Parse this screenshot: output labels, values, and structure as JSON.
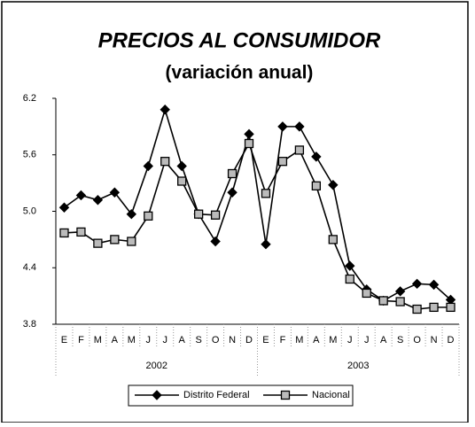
{
  "chart_data": {
    "type": "line",
    "title": "PRECIOS AL CONSUMIDOR",
    "subtitle": "(variación anual)",
    "categories": [
      "E",
      "F",
      "M",
      "A",
      "M",
      "J",
      "J",
      "A",
      "S",
      "O",
      "N",
      "D",
      "E",
      "F",
      "M",
      "A",
      "M",
      "J",
      "J",
      "A",
      "S",
      "O",
      "N",
      "D"
    ],
    "groups": [
      "2002",
      "2003"
    ],
    "series": [
      {
        "name": "Distrito Federal",
        "color": "#000000",
        "marker": "diamond",
        "values": [
          5.04,
          5.17,
          5.12,
          5.2,
          4.97,
          5.48,
          6.08,
          5.48,
          4.97,
          4.68,
          5.2,
          5.82,
          4.65,
          5.9,
          5.9,
          5.58,
          5.28,
          4.42,
          4.17,
          4.05,
          4.15,
          4.23,
          4.22,
          4.06
        ]
      },
      {
        "name": "Nacional",
        "color": "#000000",
        "marker": "square",
        "values": [
          4.77,
          4.78,
          4.66,
          4.7,
          4.68,
          4.95,
          5.53,
          5.32,
          4.97,
          4.96,
          5.4,
          5.72,
          5.19,
          5.53,
          5.65,
          5.27,
          4.7,
          4.28,
          4.13,
          4.05,
          4.04,
          3.96,
          3.98,
          3.98
        ]
      }
    ],
    "ylim": [
      3.8,
      6.2
    ],
    "yticks": [
      3.8,
      4.4,
      {
        "value": 5,
        "label": "5.0"
      },
      5.6,
      6.2
    ],
    "grid": false
  }
}
